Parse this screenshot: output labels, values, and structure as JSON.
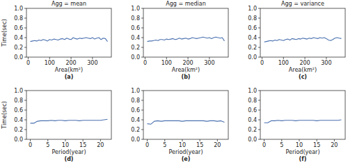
{
  "chart_data": [
    {
      "type": "line",
      "title": "Agg = mean",
      "x_label": "Area(km²)",
      "y_label": "Time(sec)",
      "annotation": "(a)",
      "x": [
        10,
        20,
        30,
        40,
        50,
        60,
        70,
        80,
        90,
        100,
        110,
        120,
        130,
        140,
        150,
        160,
        170,
        180,
        190,
        200,
        210,
        220,
        230,
        240,
        250,
        260,
        270,
        280,
        290,
        300,
        310,
        320,
        330,
        340,
        350,
        360,
        370
      ],
      "series": [
        {
          "color": "#4c72b0",
          "values": [
            0.32,
            0.33,
            0.34,
            0.33,
            0.35,
            0.34,
            0.36,
            0.35,
            0.33,
            0.36,
            0.35,
            0.37,
            0.36,
            0.35,
            0.37,
            0.38,
            0.36,
            0.39,
            0.37,
            0.36,
            0.4,
            0.38,
            0.37,
            0.39,
            0.38,
            0.39,
            0.4,
            0.39,
            0.38,
            0.4,
            0.37,
            0.39,
            0.4,
            0.36,
            0.39,
            0.38,
            0.32
          ]
        }
      ],
      "xlim": [
        -8,
        388
      ],
      "xticks": [
        0,
        100,
        200,
        300
      ],
      "ylim": [
        0,
        1
      ],
      "yticks": [
        {
          "value": 0,
          "label": "0.0"
        },
        0.2,
        0.4,
        0.6,
        0.8,
        {
          "value": 1,
          "label": "1.0"
        }
      ]
    },
    {
      "type": "line",
      "title": "Agg = median",
      "x_label": "Area(km²)",
      "annotation": "(b)",
      "x": [
        10,
        20,
        30,
        40,
        50,
        60,
        70,
        80,
        90,
        100,
        110,
        120,
        130,
        140,
        150,
        160,
        170,
        180,
        190,
        200,
        210,
        220,
        230,
        240,
        250,
        260,
        270,
        280,
        290,
        300,
        310,
        320,
        330,
        340,
        350,
        360,
        370
      ],
      "series": [
        {
          "color": "#4c72b0",
          "values": [
            0.32,
            0.33,
            0.33,
            0.34,
            0.35,
            0.34,
            0.36,
            0.36,
            0.35,
            0.37,
            0.36,
            0.37,
            0.38,
            0.36,
            0.37,
            0.39,
            0.37,
            0.38,
            0.39,
            0.37,
            0.38,
            0.4,
            0.39,
            0.38,
            0.39,
            0.4,
            0.41,
            0.4,
            0.39,
            0.4,
            0.38,
            0.4,
            0.41,
            0.4,
            0.39,
            0.4,
            0.33
          ]
        }
      ],
      "xlim": [
        -8,
        388
      ],
      "xticks": [
        0,
        100,
        200,
        300
      ],
      "ylim": [
        0,
        1
      ],
      "yticks": [
        {
          "value": 0,
          "label": "0.0"
        },
        0.2,
        0.4,
        0.6,
        0.8,
        {
          "value": 1,
          "label": "1.0"
        }
      ]
    },
    {
      "type": "line",
      "title": "Agg = variance",
      "x_label": "Area(km²)",
      "annotation": "(c)",
      "x": [
        10,
        20,
        30,
        40,
        50,
        60,
        70,
        80,
        90,
        100,
        110,
        120,
        130,
        140,
        150,
        160,
        170,
        180,
        190,
        200,
        210,
        220,
        230,
        240,
        250,
        260,
        270,
        280,
        290,
        300,
        310,
        320,
        330,
        340,
        350,
        360,
        370
      ],
      "series": [
        {
          "color": "#4c72b0",
          "values": [
            0.31,
            0.32,
            0.33,
            0.34,
            0.33,
            0.35,
            0.34,
            0.36,
            0.35,
            0.34,
            0.36,
            0.37,
            0.35,
            0.38,
            0.37,
            0.36,
            0.38,
            0.37,
            0.39,
            0.38,
            0.37,
            0.39,
            0.38,
            0.4,
            0.39,
            0.38,
            0.4,
            0.39,
            0.4,
            0.38,
            0.35,
            0.34,
            0.36,
            0.39,
            0.4,
            0.39,
            0.38
          ]
        }
      ],
      "xlim": [
        -8,
        388
      ],
      "xticks": [
        0,
        100,
        200,
        300
      ],
      "ylim": [
        0,
        1
      ],
      "yticks": [
        {
          "value": 0,
          "label": "0.0"
        },
        0.2,
        0.4,
        0.6,
        0.8,
        {
          "value": 1,
          "label": "1.0"
        }
      ]
    },
    {
      "type": "line",
      "title": "",
      "x_label": "Period(year)",
      "y_label": "Time(sec)",
      "annotation": "(d)",
      "x": [
        0,
        1,
        2,
        3,
        4,
        5,
        6,
        7,
        8,
        9,
        10,
        11,
        12,
        13,
        14,
        15,
        16,
        17,
        18,
        19,
        20,
        21,
        22
      ],
      "series": [
        {
          "color": "#4c72b0",
          "values": [
            0.33,
            0.33,
            0.37,
            0.38,
            0.38,
            0.38,
            0.39,
            0.38,
            0.39,
            0.39,
            0.38,
            0.39,
            0.39,
            0.39,
            0.38,
            0.39,
            0.39,
            0.39,
            0.39,
            0.39,
            0.39,
            0.4,
            0.41
          ]
        }
      ],
      "xlim": [
        -1.1,
        23.1
      ],
      "xticks": [
        0,
        5,
        10,
        15,
        20
      ],
      "ylim": [
        0,
        1
      ],
      "yticks": [
        {
          "value": 0,
          "label": "0.0"
        },
        0.2,
        0.4,
        0.6,
        0.8,
        {
          "value": 1,
          "label": "1.0"
        }
      ]
    },
    {
      "type": "line",
      "x_label": "Period(year)",
      "annotation": "(e)",
      "x": [
        0,
        1,
        2,
        3,
        4,
        5,
        6,
        7,
        8,
        9,
        10,
        11,
        12,
        13,
        14,
        15,
        16,
        17,
        18,
        19,
        20,
        21,
        22
      ],
      "series": [
        {
          "color": "#4c72b0",
          "values": [
            0.32,
            0.31,
            0.37,
            0.38,
            0.37,
            0.38,
            0.38,
            0.38,
            0.38,
            0.38,
            0.37,
            0.38,
            0.38,
            0.38,
            0.38,
            0.38,
            0.38,
            0.37,
            0.38,
            0.38,
            0.37,
            0.38,
            0.35
          ]
        }
      ],
      "xlim": [
        -1.1,
        23.1
      ],
      "xticks": [
        0,
        5,
        10,
        15,
        20
      ],
      "ylim": [
        0,
        1
      ],
      "yticks": [
        {
          "value": 0,
          "label": "0.0"
        },
        0.2,
        0.4,
        0.6,
        0.8,
        {
          "value": 1,
          "label": "1.0"
        }
      ]
    },
    {
      "type": "line",
      "x_label": "Period(year)",
      "annotation": "(f)",
      "x": [
        0,
        1,
        2,
        3,
        4,
        5,
        6,
        7,
        8,
        9,
        10,
        11,
        12,
        13,
        14,
        15,
        16,
        17,
        18,
        19,
        20,
        21,
        22
      ],
      "series": [
        {
          "color": "#4c72b0",
          "values": [
            0.34,
            0.34,
            0.38,
            0.38,
            0.39,
            0.38,
            0.39,
            0.39,
            0.39,
            0.38,
            0.39,
            0.39,
            0.39,
            0.39,
            0.39,
            0.38,
            0.39,
            0.39,
            0.39,
            0.39,
            0.39,
            0.39,
            0.4
          ]
        }
      ],
      "xlim": [
        -1.1,
        23.1
      ],
      "xticks": [
        0,
        5,
        10,
        15,
        20
      ],
      "ylim": [
        0,
        1
      ],
      "yticks": [
        {
          "value": 0,
          "label": "0.0"
        },
        0.2,
        0.4,
        0.6,
        0.8,
        {
          "value": 1,
          "label": "1.0"
        }
      ]
    }
  ]
}
